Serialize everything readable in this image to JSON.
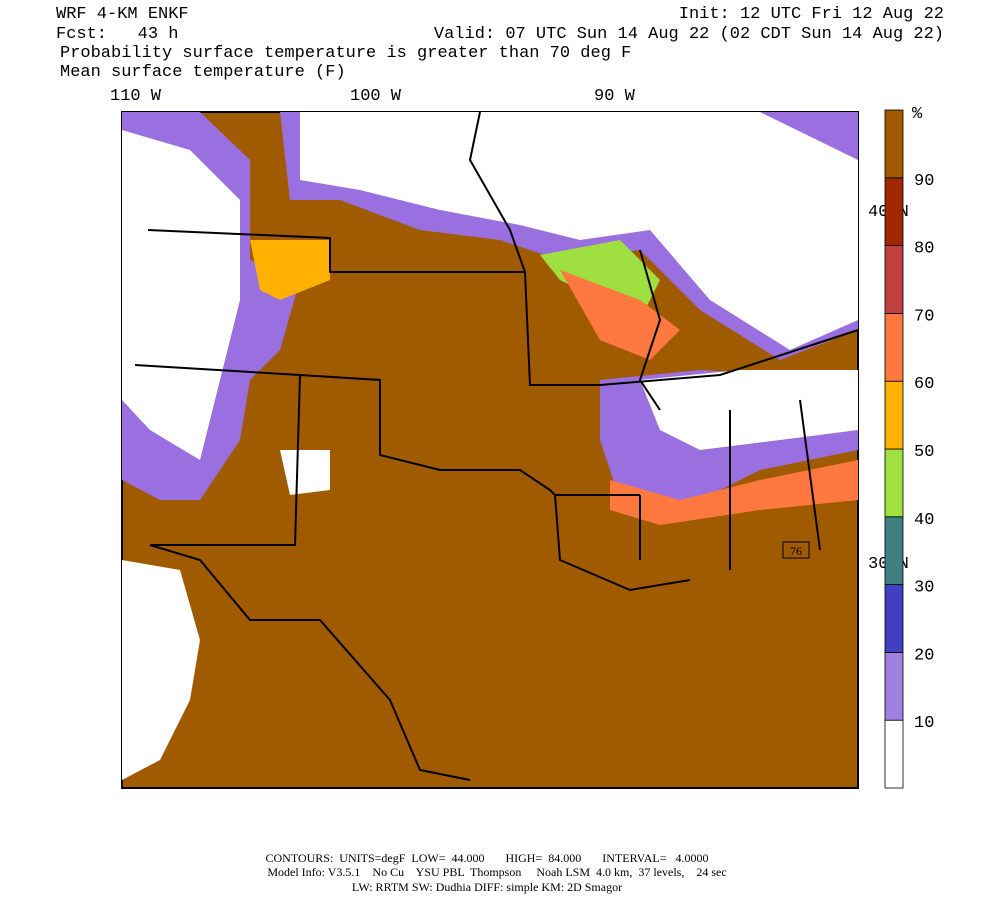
{
  "header": {
    "title": "WRF 4-KM ENKF",
    "init": "Init: 12 UTC Fri 12 Aug 22",
    "fcst": "Fcst:   43 h",
    "valid": "Valid: 07 UTC Sun 14 Aug 22 (02 CDT Sun 14 Aug 22)",
    "line1": "Probability surface temperature is greater than 70 deg F",
    "line2": "Mean surface temperature (F)"
  },
  "map": {
    "lon_labels": [
      "110 W",
      "100 W",
      "90 W"
    ],
    "lat_labels": [
      "40 N",
      "30 N"
    ],
    "route": "76"
  },
  "colorbar": {
    "unit": "%",
    "labels": [
      "10",
      "20",
      "30",
      "40",
      "50",
      "60",
      "70",
      "80",
      "90"
    ],
    "colors": [
      "#ffffff",
      "#a080e0",
      "#4040c0",
      "#3f8080",
      "#a0e040",
      "#ffb000",
      "#ff7840",
      "#c04040",
      "#a02800",
      "#a05a00"
    ]
  },
  "footer": {
    "line1": "CONTOURS:  UNITS=degF  LOW=  44.000       HIGH=  84.000       INTERVAL=   4.0000",
    "line2": "Model Info: V3.5.1    No Cu    YSU PBL  Thompson     Noah LSM  4.0 km,  37 levels,    24 sec",
    "line3": "LW: RRTM SW: Dudhia  DIFF: simple KM: 2D Smagor"
  }
}
